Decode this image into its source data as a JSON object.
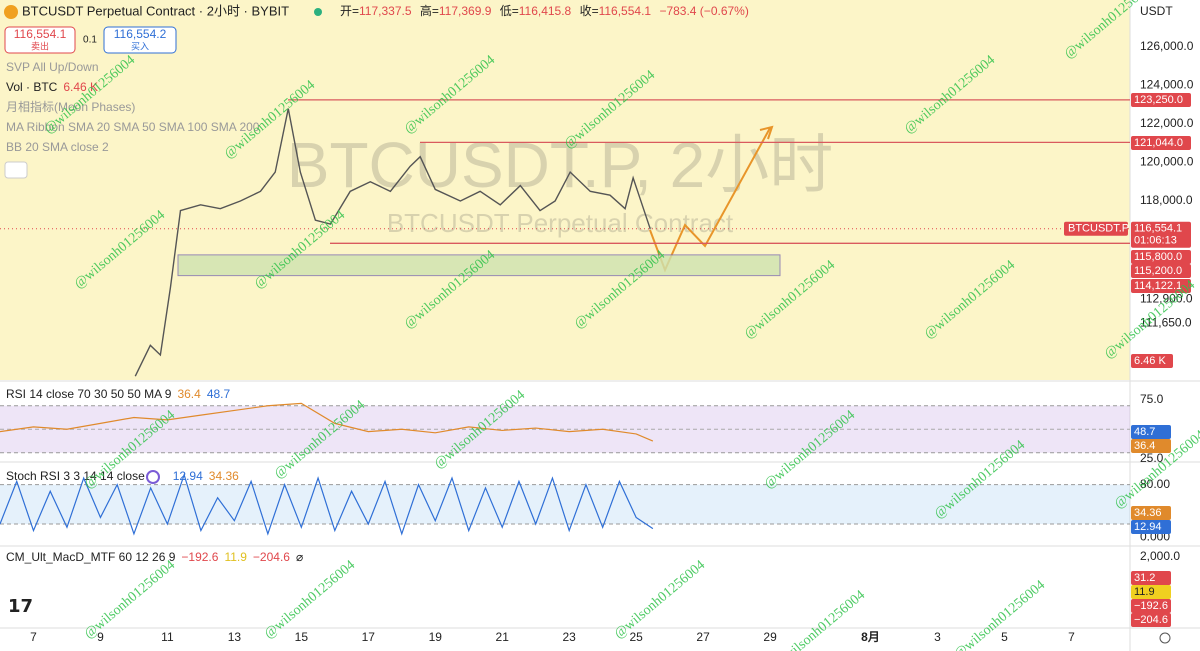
{
  "header": {
    "symbol_title": "BTCUSDT Perpetual Contract · 2小时 · BYBIT",
    "open": {
      "label": "开=",
      "value": "117,337.5"
    },
    "high": {
      "label": "高=",
      "value": "117,369.9"
    },
    "low": {
      "label": "低=",
      "value": "116,415.8"
    },
    "close": {
      "label": "收=",
      "value": "116,554.1"
    },
    "change": "−783.4 (−0.67%)"
  },
  "order": {
    "sell_price": "116,554.1",
    "sell_label": "卖出",
    "qty": "0.1",
    "buy_price": "116,554.2",
    "buy_label": "买入"
  },
  "indicators": [
    "SVP All Up/Down",
    "月相指标(Moon Phases)",
    "MA Ribbon SMA 20 SMA 50 SMA 100 SMA 200",
    "BB 20 SMA close 2"
  ],
  "vol": {
    "label": "Vol · BTC",
    "value": "6.46 K"
  },
  "watermark": {
    "symbol": "BTCUSDT.P, 2小时",
    "name": "BTCUSDT Perpetual Contract"
  },
  "handle": "@wilsonh01256004",
  "chart_data": {
    "type": "line",
    "currency": "USDT",
    "color": "#555",
    "x": [
      10.04,
      10.49,
      10.79,
      11.09,
      11.39,
      11.99,
      12.58,
      13.18,
      13.78,
      14.22,
      14.61,
      14.97,
      15.42,
      15.87,
      16.46,
      17.06,
      17.66,
      18.25,
      18.55,
      19,
      19.75,
      20.34,
      20.94,
      21.54,
      22.13,
      22.58,
      23.03,
      23.63,
      24.22,
      24.67,
      24.91,
      25.42
    ],
    "values": [
      108900,
      110500,
      110000,
      113500,
      117500,
      117800,
      117600,
      118000,
      118500,
      119500,
      122800,
      119500,
      117000,
      116800,
      118500,
      119000,
      118500,
      119800,
      120300,
      118600,
      118000,
      118500,
      117800,
      118800,
      117500,
      118000,
      119500,
      118500,
      118300,
      117600,
      119200,
      116554.1
    ],
    "xlim": [
      6,
      39.75
    ],
    "ylim": [
      108700,
      128440
    ],
    "xticks": [
      7,
      9,
      11,
      13,
      15,
      17,
      19,
      21,
      23,
      25,
      27,
      29,
      {
        "value": 32,
        "label": "8月"
      },
      {
        "value": 34,
        "label": "3"
      },
      {
        "value": 36,
        "label": "5"
      },
      {
        "value": 38,
        "label": "7"
      }
    ],
    "yticks": [
      {
        "value": 126000,
        "label": "126,000.0"
      },
      {
        "value": 124000,
        "label": "124,000.0"
      },
      {
        "value": 122000,
        "label": "122,000.0"
      },
      {
        "value": 120000,
        "label": "120,000.0"
      },
      {
        "value": 118000,
        "label": "118,000.0"
      },
      {
        "value": 112900,
        "label": "112,900.0"
      },
      {
        "value": 111650,
        "label": "111,650.0"
      }
    ],
    "levels": [
      {
        "value": 123250,
        "label": "123,250.0"
      },
      {
        "value": 121044,
        "label": "121,044.0"
      },
      {
        "value": 115800,
        "label": "115,800.0"
      },
      {
        "value": 115200,
        "label": "115,200.0"
      },
      {
        "value": 114122.1,
        "label": "114,122.1"
      }
    ],
    "last": {
      "name": "BTCUSDT.P",
      "value": 116554.1,
      "label": "116,554.1",
      "countdown": "01:06:13"
    }
  },
  "rsi": {
    "title": "RSI 14 close 70 30 50 50 MA 9",
    "readings": [
      "36.4",
      "48.7"
    ],
    "color": "#e08a2c",
    "ma_color": "#8f86c9",
    "ylim": [
      23,
      88.5
    ],
    "band": [
      70,
      30
    ],
    "midline": 50,
    "yticks": [
      {
        "value": 75,
        "label": "75.0"
      },
      {
        "value": 25,
        "label": "25.0"
      }
    ],
    "levels": [
      {
        "value": 48.7,
        "label": "48.7"
      },
      {
        "value": 36.4,
        "label": "36.4"
      }
    ],
    "x": [
      6,
      7,
      8,
      9,
      10,
      11,
      12,
      13,
      14,
      15,
      16,
      17,
      18,
      19,
      20,
      21,
      22,
      23,
      24,
      25,
      25.5
    ],
    "values": [
      48,
      52,
      50,
      55,
      60,
      58,
      62,
      66,
      70,
      72,
      55,
      48,
      50,
      47,
      52,
      49,
      51,
      48,
      50,
      46,
      40
    ]
  },
  "stoch": {
    "title": "Stoch RSI 3 3 14 14 close",
    "readings": [
      "12.94",
      "34.36"
    ],
    "color": "#2f6fd6",
    "ylim": [
      -12,
      113
    ],
    "band": [
      80,
      20
    ],
    "yticks": [
      {
        "value": 80,
        "label": "80.00"
      },
      {
        "value": 0,
        "label": "0.000"
      }
    ],
    "levels": [
      {
        "value": 34.36,
        "label": "34.36"
      },
      {
        "value": 12.94,
        "label": "12.94"
      }
    ],
    "x": [
      6,
      6.5,
      7,
      7.5,
      8,
      8.5,
      9,
      9.5,
      10,
      10.5,
      11,
      11.5,
      12,
      12.5,
      13,
      13.5,
      14,
      14.5,
      15,
      15.5,
      16,
      16.5,
      17,
      17.5,
      18,
      18.5,
      19,
      19.5,
      20,
      20.5,
      21,
      21.5,
      22,
      22.5,
      23,
      23.5,
      24,
      24.5,
      25,
      25.5
    ],
    "values": [
      20,
      85,
      10,
      70,
      15,
      90,
      30,
      80,
      5,
      75,
      20,
      95,
      10,
      60,
      25,
      85,
      5,
      80,
      15,
      90,
      10,
      70,
      20,
      85,
      5,
      80,
      25,
      90,
      10,
      75,
      15,
      85,
      20,
      90,
      10,
      80,
      15,
      85,
      30,
      12.94
    ]
  },
  "macd": {
    "title": "CM_Ult_MacD_MTF 60 12 26 9",
    "readings": [
      "−192.6",
      "11.9",
      "−204.6",
      "⌀"
    ],
    "ytick": "2,000.0",
    "labels": [
      "31.2",
      "11.9",
      "−192.6",
      "−204.6"
    ]
  }
}
